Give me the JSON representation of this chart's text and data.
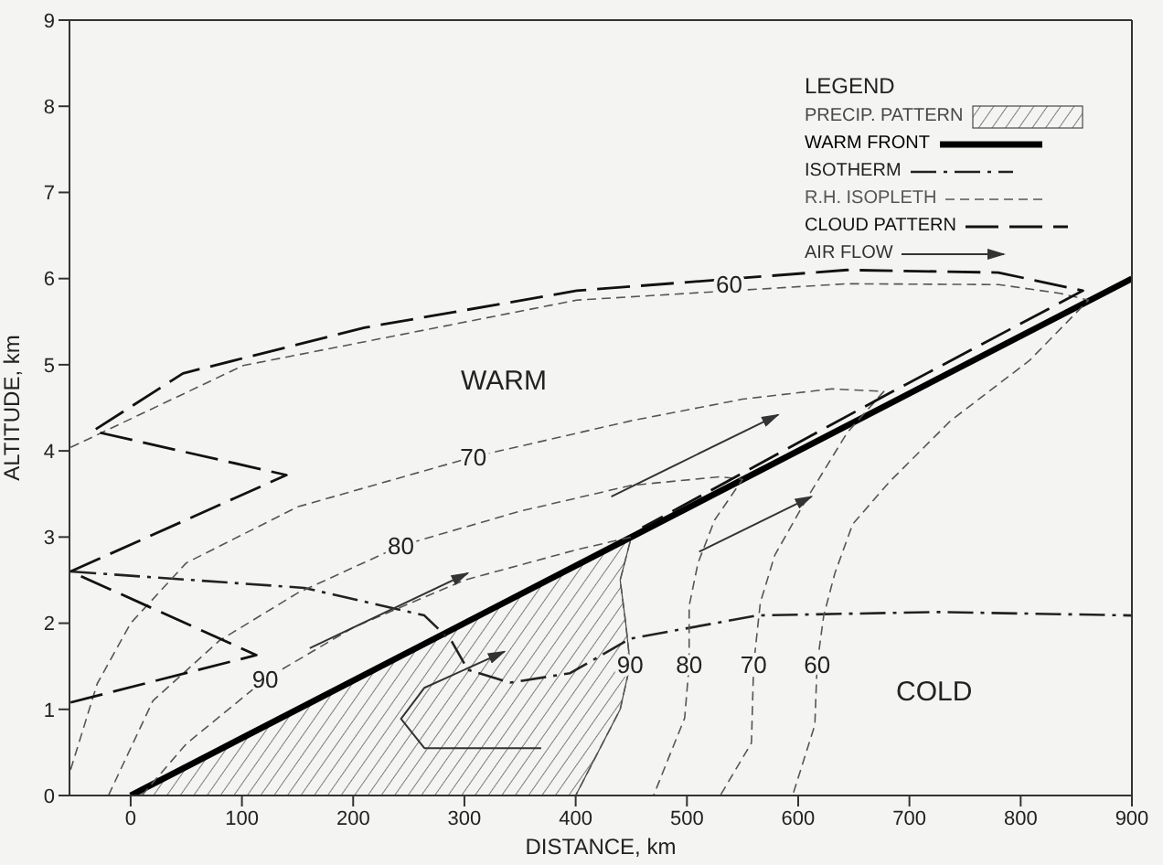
{
  "chart_data": {
    "type": "line",
    "xlabel": "DISTANCE, km",
    "ylabel": "ALTITUDE, km",
    "legend_title": "LEGEND",
    "legend": "top right",
    "xlim": [
      -55,
      900
    ],
    "xticks": [
      0,
      100,
      200,
      300,
      400,
      500,
      600,
      700,
      800,
      900
    ],
    "ylim": [
      0,
      9
    ],
    "yticks": [
      0,
      1,
      2,
      3,
      4,
      5,
      6,
      7,
      8,
      9
    ],
    "grid": false,
    "series": [
      {
        "name": "PRECIP. PATTERN",
        "type": "area",
        "color": "#484848",
        "x": [
          0,
          450,
          440,
          445,
          449,
          440,
          420,
          400
        ],
        "values": [
          0,
          3.0,
          2.5,
          2.0,
          1.52,
          1.0,
          0.5,
          0
        ]
      },
      {
        "name": "WARM FRONT",
        "color": "#000000",
        "line_style": "solid",
        "x": [
          0,
          900
        ],
        "values": [
          0,
          6
        ]
      },
      {
        "name": "ISOTHERM",
        "color": "#222222",
        "line_style": "dashdot",
        "x": [
          -54,
          156,
          264,
          289,
          303,
          341,
          395,
          449,
          563,
          726,
          900
        ],
        "values": [
          2.6,
          2.41,
          2.09,
          1.78,
          1.46,
          1.31,
          1.42,
          1.82,
          2.09,
          2.13,
          2.09
        ]
      },
      {
        "name": "R.H. ISOPLETH",
        "color": "#555555",
        "line_style": "dashed",
        "x": [
          -54,
          101,
          401,
          644,
          780,
          835,
          861,
          808,
          737,
          682,
          649,
          633,
          623,
          617,
          615,
          595
        ],
        "values": [
          4.04,
          4.99,
          5.75,
          5.94,
          5.93,
          5.83,
          5.75,
          5.05,
          4.35,
          3.64,
          3.15,
          2.58,
          2.09,
          1.52,
          0.82,
          0
        ]
      },
      {
        "color": "#555555",
        "line_style": "dashed",
        "x": [
          -54,
          -30,
          0,
          50,
          150,
          308,
          450,
          550,
          630,
          677,
          644,
          607,
          579,
          566,
          560,
          558,
          530
        ],
        "values": [
          0.3,
          1.3,
          2.0,
          2.7,
          3.35,
          3.93,
          4.35,
          4.6,
          4.72,
          4.69,
          4.21,
          3.43,
          2.79,
          2.24,
          1.52,
          0.61,
          0
        ]
      },
      {
        "color": "#555555",
        "line_style": "dashed",
        "x": [
          -20,
          20,
          80,
          150,
          243,
          350,
          450,
          530,
          550,
          525,
          510,
          502,
          502,
          498,
          470
        ],
        "values": [
          0,
          1.1,
          1.8,
          2.35,
          2.9,
          3.3,
          3.6,
          3.7,
          3.67,
          3.2,
          2.7,
          2.2,
          1.52,
          0.9,
          0
        ]
      },
      {
        "color": "#555555",
        "line_style": "dashed",
        "x": [
          10,
          50,
          121,
          200,
          300,
          400,
          450,
          440,
          445,
          449,
          440,
          420,
          400
        ],
        "values": [
          0,
          0.6,
          1.35,
          1.95,
          2.5,
          2.85,
          3.0,
          2.5,
          2.0,
          1.52,
          1.0,
          0.5,
          0
        ]
      },
      {
        "name": "CLOUD PATTERN",
        "color": "#111111",
        "line_style": "longdash",
        "x": [
          -54,
          113,
          -54,
          140,
          -34,
          47,
          210,
          401,
          644,
          780,
          856,
          682,
          460
        ],
        "values": [
          1.08,
          1.63,
          2.6,
          3.72,
          4.23,
          4.9,
          5.43,
          5.86,
          6.1,
          6.07,
          5.86,
          4.67,
          3.11
        ]
      },
      {
        "name": "AIR FLOW",
        "color": "#333333",
        "line_style": "solid",
        "marker": "none",
        "x": [
          161,
          303
        ],
        "values": [
          1.71,
          2.58
        ]
      },
      {
        "color": "#333333",
        "line_style": "solid",
        "marker": "none",
        "x": [
          432,
          582
        ],
        "values": [
          3.47,
          4.42
        ]
      },
      {
        "color": "#333333",
        "line_style": "solid",
        "marker": "none",
        "x": [
          511,
          612
        ],
        "values": [
          2.83,
          3.47
        ]
      },
      {
        "color": "#333333",
        "line_style": "solid",
        "marker": "none",
        "x": [
          369,
          264,
          243,
          264,
          336
        ],
        "values": [
          0.55,
          0.55,
          0.89,
          1.25,
          1.67
        ]
      }
    ],
    "annotations": [
      "WARM",
      "COLD",
      {
        "text": "60",
        "x": 538,
        "y": 5.94
      },
      {
        "text": "70",
        "x": 308,
        "y": 3.93
      },
      {
        "text": "80",
        "x": 243,
        "y": 2.9
      },
      {
        "text": "90",
        "x": 121,
        "y": 1.35
      },
      {
        "text": "90",
        "x": 449,
        "y": 1.52
      },
      {
        "text": "80",
        "x": 502,
        "y": 1.52
      },
      {
        "text": "70",
        "x": 560,
        "y": 1.52
      },
      {
        "text": "60",
        "x": 617,
        "y": 1.52
      }
    ]
  }
}
